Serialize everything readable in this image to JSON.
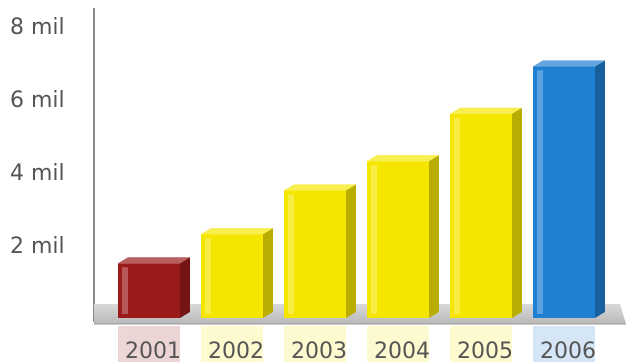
{
  "chart_data": {
    "type": "bar",
    "title": "",
    "xlabel": "",
    "ylabel": "",
    "categories": [
      "2001",
      "2002",
      "2003",
      "2004",
      "2005",
      "2006"
    ],
    "values": [
      1.5,
      2.3,
      3.5,
      4.3,
      5.6,
      6.9
    ],
    "ylim": [
      0,
      8.5
    ],
    "yticks": [
      2,
      4,
      6,
      8
    ],
    "ytick_labels": [
      "2 mil",
      "4 mil",
      "6 mil",
      "8 mil"
    ],
    "grid": false,
    "legend": "none",
    "colors": [
      "#9b1b1b",
      "#f5e600",
      "#f5e600",
      "#f5e600",
      "#f5e600",
      "#1f7fd1"
    ]
  }
}
